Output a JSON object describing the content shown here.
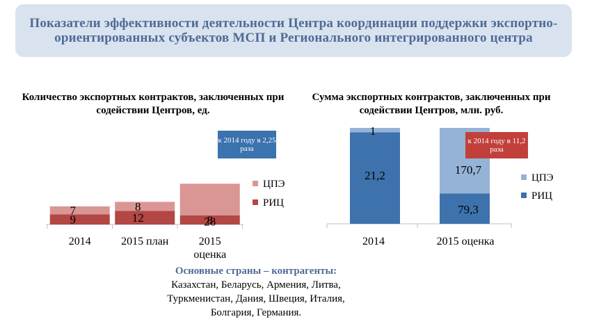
{
  "header": {
    "title": "Показатели эффективности деятельности Центра координации поддержки экспортно-ориентированных субъектов МСП и Регионального интегрированного центра"
  },
  "colors": {
    "chart1_cpe": "#da9694",
    "chart1_ric": "#b24744",
    "chart2_cpe": "#95b3d7",
    "chart2_ric": "#3d72ad",
    "title_bg": "#d9e3ef",
    "title_text": "#4e6b96"
  },
  "chart_data": [
    {
      "type": "bar",
      "stacked": true,
      "title": "Количество экспортных контрактов, заключенных при содействии Центров, ед.",
      "categories": [
        "2014",
        "2015 план",
        "2015 оценка"
      ],
      "series": [
        {
          "name": "РИЦ",
          "values": [
            9,
            12,
            8
          ]
        },
        {
          "name": "ЦПЭ",
          "values": [
            7,
            8,
            28
          ]
        }
      ],
      "annotation": "к 2014 году в 2,25 раза",
      "legend_position": "right",
      "grid": false
    },
    {
      "type": "bar",
      "stacked": true,
      "percent_stacked": true,
      "title": "Сумма экспортных контрактов, заключенных при содействии Центров, млн. руб.",
      "categories": [
        "2014",
        "2015 оценка"
      ],
      "series": [
        {
          "name": "РИЦ",
          "values": [
            21.2,
            79.3
          ],
          "labels": [
            "21,2",
            "79,3"
          ]
        },
        {
          "name": "ЦПЭ",
          "values": [
            1,
            170.7
          ],
          "labels": [
            "1",
            "170,7"
          ]
        }
      ],
      "annotation": "к 2014 году в 11,2 раза",
      "legend_position": "right",
      "grid": false
    }
  ],
  "countries": {
    "heading": "Основные страны – контрагенты:",
    "line1": "Казахстан, Беларусь, Армения, Литва,",
    "line2": "Туркменистан, Дания, Швеция, Италия,",
    "line3": "Болгария, Германия."
  }
}
